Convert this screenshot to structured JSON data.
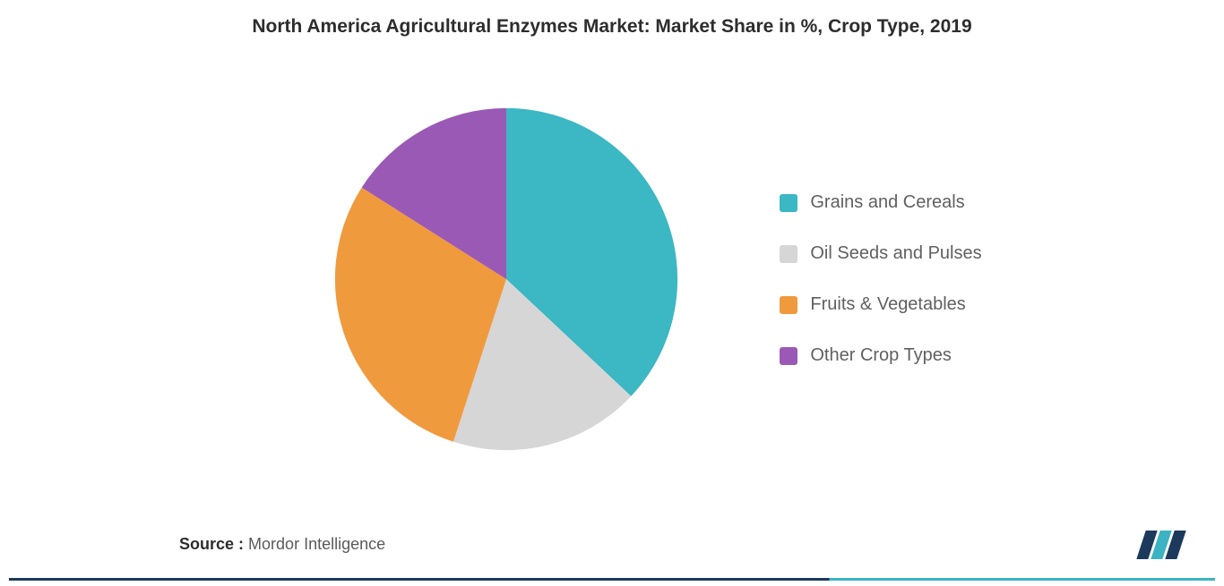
{
  "chart": {
    "type": "pie",
    "title": "North America Agricultural Enzymes Market: Market Share in %, Crop Type, 2019",
    "title_fontsize": 21,
    "title_color": "#2d2d2d",
    "background_color": "#ffffff",
    "pie_radius": 195,
    "slices": [
      {
        "label": "Grains and Cereals",
        "value": 37,
        "color": "#3cb7c4"
      },
      {
        "label": "Oil Seeds and Pulses",
        "value": 18,
        "color": "#d6d6d6"
      },
      {
        "label": "Fruits & Vegetables",
        "value": 29,
        "color": "#f09a3e"
      },
      {
        "label": "Other Crop Types",
        "value": 16,
        "color": "#9b59b6"
      }
    ],
    "legend": {
      "position": "right",
      "fontsize": 20,
      "label_color": "#606060"
    }
  },
  "source": {
    "label": "Source :",
    "value": "Mordor Intelligence",
    "fontsize": 18
  },
  "logo": {
    "name": "mordor-intelligence-logo",
    "colors": [
      "#1b3a5c",
      "#3bb3c3"
    ]
  },
  "bottom_bar": {
    "colors": [
      "#1b3a5c",
      "#3bb3c3"
    ],
    "split_at_percent": 68
  }
}
